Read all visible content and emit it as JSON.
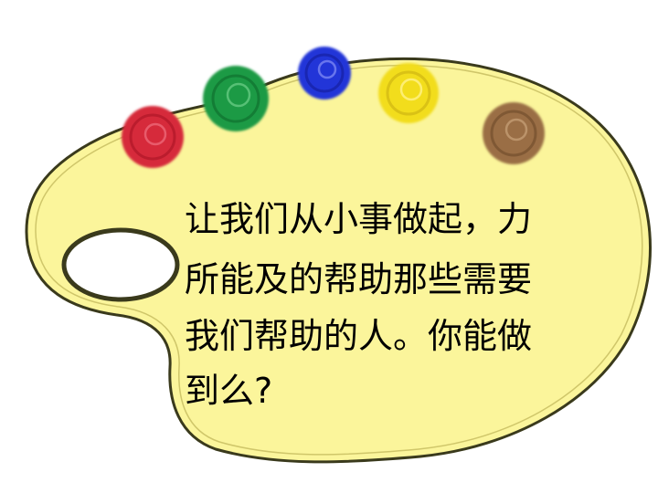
{
  "message": {
    "lines": [
      "让我们从小事做起，力",
      "所能及的帮助那些需要",
      "我们帮助的人。你能做",
      "到么?"
    ]
  },
  "palette": {
    "board_color": "#fbf59b",
    "border_color": "#3a3a1c",
    "paints": [
      {
        "name": "red",
        "color": "#d62a3a"
      },
      {
        "name": "green",
        "color": "#1f9a44"
      },
      {
        "name": "blue",
        "color": "#2434d8"
      },
      {
        "name": "yellow",
        "color": "#f2dd1e"
      },
      {
        "name": "brown",
        "color": "#9a6e44"
      }
    ]
  }
}
